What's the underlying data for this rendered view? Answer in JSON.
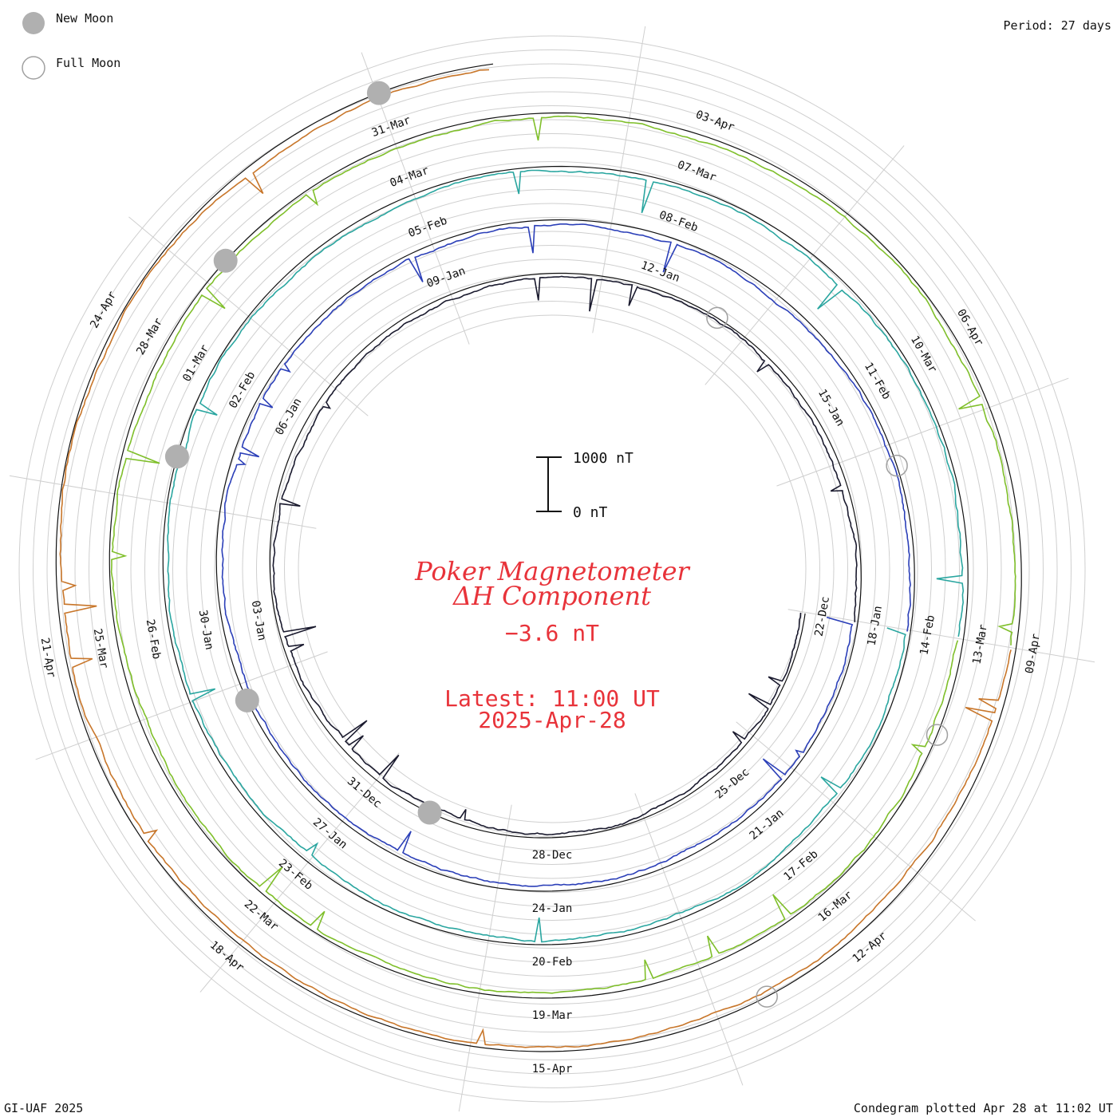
{
  "legend": {
    "new_moon_label": "New Moon",
    "full_moon_label": "Full Moon",
    "new_moon_color": "#b0b0b0",
    "full_moon_color": "#a0a0a0"
  },
  "period_label": "Period: 27 days",
  "footer": {
    "left": "GI-UAF 2025",
    "right": "Condegram plotted Apr 28 at 11:02 UT"
  },
  "scale_bar": {
    "top_label": "1000 nT",
    "bottom_label": "0 nT"
  },
  "center": {
    "title_line1": "Poker Magnetometer",
    "title_line2": "ΔH Component",
    "current_value": "−3.6 nT",
    "latest_time": "Latest: 11:00 UT",
    "latest_date": "2025-Apr-28"
  },
  "chart_data": {
    "type": "line",
    "period_days": 27,
    "start_date": "2024-12-22",
    "end_date": "2025-04-28",
    "spiral_rings": [
      {
        "start": "22-Dec",
        "color": "#1a1a2e"
      },
      {
        "start": "18-Jan",
        "color": "#2b3fb8"
      },
      {
        "start": "14-Feb",
        "color": "#2aa6a0"
      },
      {
        "start": "13-Mar",
        "color": "#7fbf2a"
      },
      {
        "start": "09-Apr",
        "color": "#c8762a"
      }
    ],
    "date_labels": [
      {
        "text": "22-Dec",
        "ring": 0
      },
      {
        "text": "25-Dec",
        "ring": 0
      },
      {
        "text": "28-Dec",
        "ring": 0
      },
      {
        "text": "31-Dec",
        "ring": 0
      },
      {
        "text": "03-Jan",
        "ring": 0
      },
      {
        "text": "06-Jan",
        "ring": 0
      },
      {
        "text": "09-Jan",
        "ring": 0
      },
      {
        "text": "12-Jan",
        "ring": 0
      },
      {
        "text": "15-Jan",
        "ring": 0
      },
      {
        "text": "18-Jan",
        "ring": 1
      },
      {
        "text": "21-Jan",
        "ring": 1
      },
      {
        "text": "24-Jan",
        "ring": 1
      },
      {
        "text": "27-Jan",
        "ring": 1
      },
      {
        "text": "30-Jan",
        "ring": 1
      },
      {
        "text": "02-Feb",
        "ring": 1
      },
      {
        "text": "05-Feb",
        "ring": 1
      },
      {
        "text": "08-Feb",
        "ring": 1
      },
      {
        "text": "11-Feb",
        "ring": 1
      },
      {
        "text": "14-Feb",
        "ring": 2
      },
      {
        "text": "17-Feb",
        "ring": 2
      },
      {
        "text": "20-Feb",
        "ring": 2
      },
      {
        "text": "23-Feb",
        "ring": 2
      },
      {
        "text": "26-Feb",
        "ring": 2
      },
      {
        "text": "01-Mar",
        "ring": 2
      },
      {
        "text": "04-Mar",
        "ring": 2
      },
      {
        "text": "07-Mar",
        "ring": 2
      },
      {
        "text": "10-Mar",
        "ring": 2
      },
      {
        "text": "13-Mar",
        "ring": 3
      },
      {
        "text": "16-Mar",
        "ring": 3
      },
      {
        "text": "19-Mar",
        "ring": 3
      },
      {
        "text": "22-Mar",
        "ring": 3
      },
      {
        "text": "25-Mar",
        "ring": 3
      },
      {
        "text": "28-Mar",
        "ring": 3
      },
      {
        "text": "31-Mar",
        "ring": 3
      },
      {
        "text": "03-Apr",
        "ring": 3
      },
      {
        "text": "06-Apr",
        "ring": 3
      },
      {
        "text": "09-Apr",
        "ring": 4
      },
      {
        "text": "12-Apr",
        "ring": 4
      },
      {
        "text": "15-Apr",
        "ring": 4
      },
      {
        "text": "18-Apr",
        "ring": 4
      },
      {
        "text": "21-Apr",
        "ring": 4
      },
      {
        "text": "24-Apr",
        "ring": 4
      }
    ],
    "new_moons": [
      "2024-12-30",
      "2025-01-29",
      "2025-02-28",
      "2025-03-29",
      "2025-04-27"
    ],
    "full_moons": [
      "2025-01-13",
      "2025-02-12",
      "2025-03-14",
      "2025-04-13"
    ],
    "scale_nT": [
      0,
      1000
    ]
  }
}
